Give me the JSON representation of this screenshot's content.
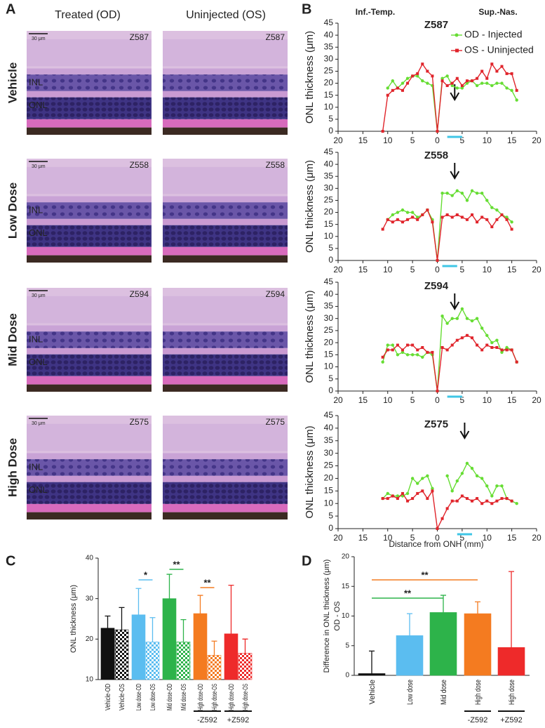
{
  "panel_labels": {
    "a": "A",
    "b": "B",
    "c": "C",
    "d": "D"
  },
  "histology": {
    "columns": [
      "Treated (OD)",
      "Uninjected (OS)"
    ],
    "scale_bar": "30 μm",
    "layers": [
      "INL",
      "ONL"
    ],
    "rows": [
      {
        "label": "Vehicle",
        "od_id": "Z587",
        "os_id": "Z587"
      },
      {
        "label": "Low Dose",
        "od_id": "Z558",
        "os_id": "Z558"
      },
      {
        "label": "Mid Dose",
        "od_id": "Z594",
        "os_id": "Z594"
      },
      {
        "label": "High Dose",
        "od_id": "Z575",
        "os_id": "Z575"
      }
    ]
  },
  "chart_data": [
    {
      "type": "line",
      "title": "Z587",
      "annotations": [
        "Inf.-Temp.",
        "Sup.-Nas."
      ],
      "ylabel": "ONL thickness (μm)",
      "xlim": [
        -20,
        20
      ],
      "xticks": [
        {
          "value": -20,
          "label": "20"
        },
        {
          "value": -15,
          "label": "15"
        },
        {
          "value": -10,
          "label": "10"
        },
        {
          "value": -5,
          "label": "5"
        },
        0,
        5,
        10,
        15,
        20
      ],
      "ylim": [
        0,
        45
      ],
      "yticks": [
        0,
        5,
        10,
        15,
        20,
        25,
        30,
        35,
        40,
        45
      ],
      "legend": "upper right",
      "x": [
        -11,
        -10,
        -9,
        -8,
        -7,
        -6,
        -5,
        -4,
        -3,
        -2,
        -1,
        0,
        1,
        2,
        3,
        4,
        5,
        6,
        7,
        8,
        9,
        10,
        11,
        12,
        13,
        14,
        15,
        16
      ],
      "series": [
        {
          "name": "OD - Injected",
          "color": "#66dd33",
          "values": [
            null,
            18,
            21,
            18,
            20,
            22,
            23,
            23,
            21,
            20,
            19,
            0,
            22,
            23,
            19,
            18,
            18,
            20,
            21,
            19,
            20,
            20,
            19,
            20,
            20,
            18,
            17,
            13
          ]
        },
        {
          "name": "OS - Uninjected",
          "color": "#e0242b",
          "values": [
            0,
            15,
            17,
            18,
            17,
            20,
            23,
            24,
            28,
            25,
            23,
            0,
            21,
            19,
            20,
            22,
            19,
            21,
            21,
            22,
            25,
            22,
            28,
            25,
            27,
            24,
            24,
            17
          ]
        }
      ]
    },
    {
      "type": "line",
      "title": "Z558",
      "ylabel": "ONL thickness (μm)",
      "xlim": [
        -20,
        20
      ],
      "xticks": [
        {
          "value": -20,
          "label": "20"
        },
        {
          "value": -15,
          "label": "15"
        },
        {
          "value": -10,
          "label": "10"
        },
        {
          "value": -5,
          "label": "5"
        },
        0,
        5,
        10,
        15,
        20
      ],
      "ylim": [
        0,
        45
      ],
      "yticks": [
        0,
        5,
        10,
        15,
        20,
        25,
        30,
        35,
        40,
        45
      ],
      "x": [
        -11,
        -10,
        -9,
        -8,
        -7,
        -6,
        -5,
        -4,
        -3,
        -2,
        -1,
        0,
        1,
        2,
        3,
        4,
        5,
        6,
        7,
        8,
        9,
        10,
        11,
        12,
        13,
        14,
        15,
        16
      ],
      "series": [
        {
          "color": "#66dd33",
          "values": [
            null,
            17,
            19,
            20,
            21,
            20,
            20,
            18,
            19,
            21,
            17,
            0,
            28,
            28,
            27,
            29,
            28,
            25,
            29,
            28,
            28,
            25,
            22,
            21,
            19,
            18,
            16,
            null
          ]
        },
        {
          "color": "#e0242b",
          "values": [
            13,
            17,
            16,
            17,
            16,
            17,
            18,
            17,
            19,
            21,
            16,
            0,
            18,
            19,
            18,
            19,
            18,
            17,
            19,
            16,
            18,
            17,
            14,
            17,
            19,
            17,
            13,
            null
          ]
        }
      ]
    },
    {
      "type": "line",
      "title": "Z594",
      "ylabel": "ONL thickness (μm)",
      "xlim": [
        -20,
        20
      ],
      "xticks": [
        {
          "value": -20,
          "label": "20"
        },
        {
          "value": -15,
          "label": "15"
        },
        {
          "value": -10,
          "label": "10"
        },
        {
          "value": -5,
          "label": "5"
        },
        0,
        5,
        10,
        15,
        20
      ],
      "ylim": [
        0,
        45
      ],
      "yticks": [
        0,
        5,
        10,
        15,
        20,
        25,
        30,
        35,
        40,
        45
      ],
      "x": [
        -11,
        -10,
        -9,
        -8,
        -7,
        -6,
        -5,
        -4,
        -3,
        -2,
        -1,
        0,
        1,
        2,
        3,
        4,
        5,
        6,
        7,
        8,
        9,
        10,
        11,
        12,
        13,
        14,
        15,
        16
      ],
      "series": [
        {
          "color": "#66dd33",
          "values": [
            12,
            19,
            19,
            15,
            16,
            15,
            15,
            15,
            14,
            16,
            15,
            0,
            31,
            28,
            30,
            30,
            34,
            30,
            29,
            30,
            26,
            23,
            20,
            21,
            16,
            18,
            17,
            12
          ]
        },
        {
          "color": "#e0242b",
          "values": [
            14,
            17,
            17,
            19,
            17,
            19,
            19,
            17,
            18,
            16,
            16,
            0,
            18,
            17,
            19,
            21,
            22,
            23,
            22,
            19,
            17,
            19,
            18,
            18,
            17,
            17,
            17,
            12
          ]
        }
      ]
    },
    {
      "type": "line",
      "title": "Z575",
      "ylabel": "ONL thickness (μm)",
      "xlabel": "Distance from ONH (mm)",
      "xlim": [
        -20,
        20
      ],
      "xticks": [
        {
          "value": -20,
          "label": "20"
        },
        {
          "value": -15,
          "label": "15"
        },
        {
          "value": -10,
          "label": "10"
        },
        {
          "value": -5,
          "label": "5"
        },
        0,
        5,
        10,
        15,
        20
      ],
      "ylim": [
        0,
        45
      ],
      "yticks": [
        0,
        5,
        10,
        15,
        20,
        25,
        30,
        35,
        40,
        45
      ],
      "x": [
        -11,
        -10,
        -9,
        -8,
        -7,
        -6,
        -5,
        -4,
        -3,
        -2,
        -1,
        0,
        1,
        2,
        3,
        4,
        5,
        6,
        7,
        8,
        9,
        10,
        11,
        12,
        13,
        14,
        15,
        16
      ],
      "series": [
        {
          "color": "#66dd33",
          "values": [
            12,
            14,
            13,
            13,
            13,
            14,
            20,
            18,
            20,
            21,
            16,
            null,
            null,
            21,
            15,
            19,
            22,
            26,
            24,
            21,
            20,
            17,
            13,
            17,
            17,
            12,
            11,
            10
          ]
        },
        {
          "color": "#e0242b",
          "values": [
            12,
            12,
            13,
            12,
            14,
            11,
            12,
            14,
            15,
            12,
            15,
            0,
            4,
            8,
            11,
            11,
            13,
            12,
            11,
            12,
            10,
            11,
            10,
            11,
            12,
            12,
            11,
            null
          ]
        }
      ]
    },
    {
      "type": "bar",
      "ylabel": "ONL thickness (μm)",
      "ylim": [
        10,
        40
      ],
      "yticks": [
        10,
        20,
        30,
        40
      ],
      "categories": [
        "Vehicle-OD",
        "Vehicle-OS",
        "Low dose-OD",
        "Low dose-OS",
        "Mid dose-OD",
        "Mid dose-OS",
        "High dose-OD",
        "High dose-OS",
        "High dose-OD",
        "High dose-OS"
      ],
      "values": [
        22.7,
        22.3,
        26,
        19.3,
        30,
        19.3,
        26.3,
        16,
        21.3,
        16.5
      ],
      "errors": [
        3,
        5.5,
        6.5,
        6,
        6,
        5.5,
        4.5,
        3.5,
        12,
        3.5
      ],
      "colors": [
        "#111111",
        "#111111",
        "#5bbdf0",
        "#5bbdf0",
        "#2db34a",
        "#2db34a",
        "#f47b20",
        "#f47b20",
        "#ee2a2a",
        "#ee2a2a"
      ],
      "fill_style": [
        "solid",
        "checkered",
        "solid",
        "checkered",
        "solid",
        "checkered",
        "solid",
        "checkered",
        "solid",
        "checkered"
      ],
      "significance": [
        {
          "label": "*",
          "color": "#5bbdf0"
        },
        {
          "label": "**",
          "color": "#2db34a"
        },
        {
          "label": "**",
          "color": "#f47b20"
        }
      ],
      "group_labels": [
        "-Z592",
        "+Z592"
      ]
    },
    {
      "type": "bar",
      "ylabel": "Difference in ONL thickness (μm)",
      "ylabel2": "OD - OS",
      "ylim": [
        0,
        20
      ],
      "yticks": [
        0,
        5,
        10,
        15,
        20
      ],
      "categories": [
        "Vehicle",
        "Low dose",
        "Mid dose",
        "High dose",
        "High dose"
      ],
      "values": [
        0.3,
        6.7,
        10.6,
        10.4,
        4.7
      ],
      "errors": [
        3.8,
        3.7,
        2.9,
        2,
        12.8
      ],
      "colors": [
        "#111111",
        "#5bbdf0",
        "#2db34a",
        "#f47b20",
        "#ee2a2a"
      ],
      "significance": [
        {
          "label": "**",
          "color": "#f47b20"
        },
        {
          "label": "**",
          "color": "#2db34a"
        }
      ],
      "group_labels": [
        "-Z592",
        "+Z592"
      ]
    }
  ]
}
